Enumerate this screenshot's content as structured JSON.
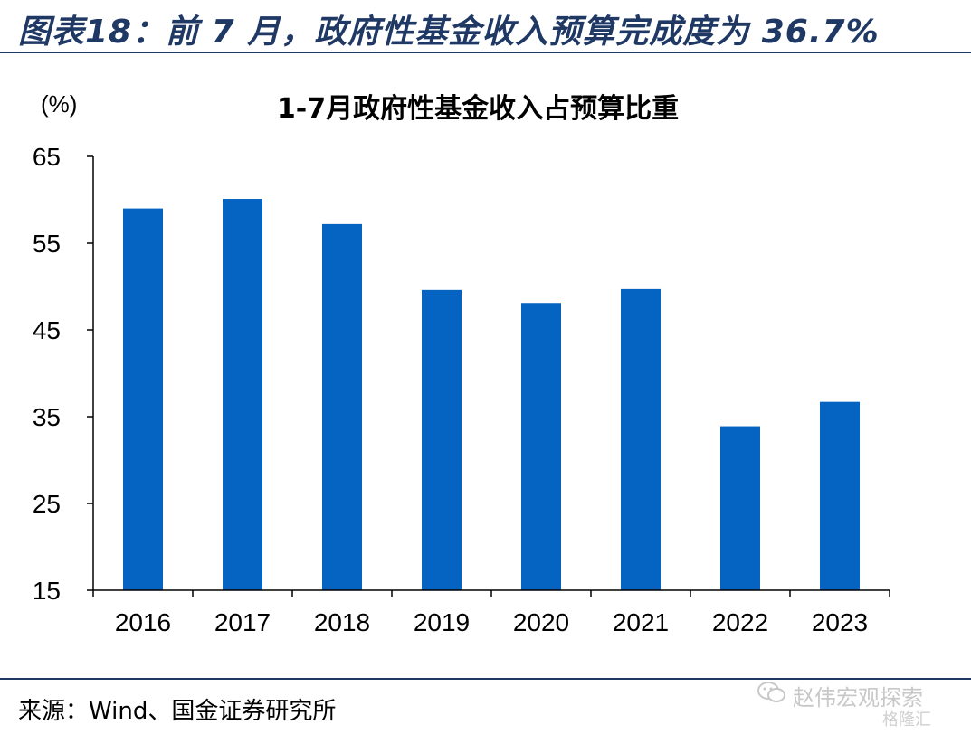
{
  "header": {
    "title": "图表18：前 7 月，政府性基金收入预算完成度为 36.7%"
  },
  "chart_data": {
    "type": "bar",
    "title": "1-7月政府性基金收入占预算比重",
    "ylabel": "(%)",
    "xlabel": "",
    "categories": [
      "2016",
      "2017",
      "2018",
      "2019",
      "2020",
      "2021",
      "2022",
      "2023"
    ],
    "values": [
      59.0,
      60.1,
      57.2,
      49.6,
      48.1,
      49.7,
      33.9,
      36.7
    ],
    "ylim": [
      15,
      65
    ],
    "yticks": [
      "15",
      "25",
      "35",
      "45",
      "55",
      "65"
    ],
    "grid": false,
    "bar_color": "#0563c1"
  },
  "footer": {
    "source": "来源：Wind、国金证券研究所",
    "watermark": "赵伟宏观探索",
    "watermark2": "格隆汇"
  }
}
